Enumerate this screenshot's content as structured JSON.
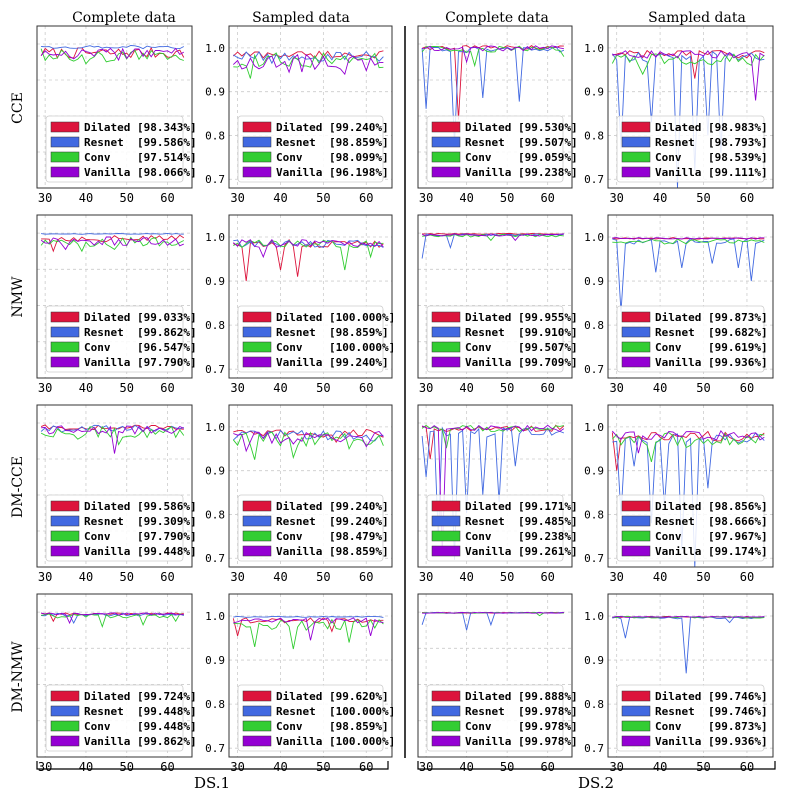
{
  "columns": [
    "Complete data",
    "Sampled data",
    "Complete data",
    "Sampled data"
  ],
  "rows": [
    "CCE",
    "NMW",
    "DM-CCE",
    "DM-NMW"
  ],
  "groups": [
    "DS.1",
    "DS.2"
  ],
  "chart_data": {
    "type": "line",
    "title": "",
    "xlabel": "",
    "ylabel": "",
    "xticks": [
      "30",
      "40",
      "50",
      "60"
    ],
    "xlim": [
      28,
      66
    ],
    "complete_ylim": [
      0.6,
      1.05
    ],
    "sampled_ylim": [
      0.68,
      1.05
    ],
    "sampled_yticks": [
      "0.7",
      "0.8",
      "0.9",
      "1.0"
    ],
    "series_names": [
      "Dilated",
      "Resnet",
      "Conv",
      "Vanilla"
    ],
    "series_colors": [
      "#dc143c",
      "#4169e1",
      "#32cd32",
      "#9400d3"
    ],
    "panels": [
      {
        "row": "CCE",
        "col": 0,
        "legend": [
          "[98.343%]",
          "[99.586%]",
          "[97.514%]",
          "[98.066%]"
        ],
        "base": [
          0.975,
          0.992,
          0.968,
          0.972
        ],
        "dips": [
          [],
          [],
          [
            [
              40,
              0.945
            ],
            [
              47,
              0.955
            ]
          ],
          [
            [
              50,
              0.96
            ]
          ]
        ]
      },
      {
        "row": "CCE",
        "col": 1,
        "legend": [
          "[99.240%]",
          "[98.859%]",
          "[98.099%]",
          "[96.198%]"
        ],
        "base": [
          0.985,
          0.98,
          0.972,
          0.965
        ],
        "dips": [
          [],
          [
            [
              38,
              0.965
            ]
          ],
          [
            [
              33,
              0.93
            ],
            [
              63,
              0.955
            ]
          ],
          [
            [
              45,
              0.945
            ],
            [
              55,
              0.94
            ]
          ]
        ]
      },
      {
        "row": "CCE",
        "col": 2,
        "legend": [
          "[99.530%]",
          "[99.507%]",
          "[99.059%]",
          "[99.238%]"
        ],
        "base": [
          0.99,
          0.985,
          0.985,
          0.988
        ],
        "dips": [
          [
            [
              38,
              0.79
            ]
          ],
          [
            [
              30,
              0.82
            ],
            [
              37,
              0.72
            ],
            [
              44,
              0.85
            ],
            [
              53,
              0.84
            ]
          ],
          [
            [
              42,
              0.94
            ],
            [
              64,
              0.965
            ]
          ],
          [
            [
              40,
              0.95
            ]
          ]
        ]
      },
      {
        "row": "CCE",
        "col": 3,
        "legend": [
          "[98.983%]",
          "[98.793%]",
          "[98.539%]",
          "[99.111%]"
        ],
        "base": [
          0.985,
          0.98,
          0.975,
          0.985
        ],
        "dips": [
          [
            [
              48,
              0.93
            ]
          ],
          [
            [
              31,
              0.77
            ],
            [
              38,
              0.83
            ],
            [
              44,
              0.68
            ],
            [
              48,
              0.72
            ],
            [
              51,
              0.8
            ],
            [
              54,
              0.76
            ]
          ],
          [
            [
              36,
              0.94
            ]
          ],
          [
            [
              62,
              0.88
            ]
          ]
        ]
      },
      {
        "row": "NMW",
        "col": 0,
        "legend": [
          "[99.033%]",
          "[99.862%]",
          "[96.547%]",
          "[97.790%]"
        ],
        "base": [
          0.985,
          0.998,
          0.975,
          0.978
        ],
        "dips": [
          [
            [
              32,
              0.95
            ]
          ],
          [],
          [
            [
              39,
              0.95
            ],
            [
              47,
              0.955
            ]
          ],
          [
            [
              35,
              0.955
            ],
            [
              63,
              0.965
            ]
          ]
        ]
      },
      {
        "row": "NMW",
        "col": 1,
        "legend": [
          "[100.000%]",
          "[98.859%]",
          "[100.000%]",
          "[99.240%]"
        ],
        "base": [
          0.985,
          0.985,
          0.985,
          0.985
        ],
        "dips": [
          [
            [
              32,
              0.9
            ],
            [
              40,
              0.925
            ],
            [
              44,
              0.91
            ]
          ],
          [],
          [
            [
              55,
              0.925
            ],
            [
              61,
              0.955
            ]
          ],
          [
            [
              36,
              0.955
            ]
          ]
        ]
      },
      {
        "row": "NMW",
        "col": 2,
        "legend": [
          "[99.955%]",
          "[99.910%]",
          "[99.507%]",
          "[99.709%]"
        ],
        "base": [
          0.998,
          0.995,
          0.993,
          0.995
        ],
        "dips": [
          [],
          [
            [
              29,
              0.93
            ],
            [
              36,
              0.96
            ]
          ],
          [
            [
              46,
              0.98
            ]
          ],
          [
            [
              52,
              0.98
            ]
          ]
        ]
      },
      {
        "row": "NMW",
        "col": 3,
        "legend": [
          "[99.873%]",
          "[99.682%]",
          "[99.619%]",
          "[99.936%]"
        ],
        "base": [
          0.997,
          0.99,
          0.99,
          0.997
        ],
        "dips": [
          [],
          [
            [
              31,
              0.83
            ],
            [
              39,
              0.92
            ],
            [
              45,
              0.93
            ],
            [
              52,
              0.94
            ],
            [
              58,
              0.93
            ],
            [
              61,
              0.9
            ]
          ],
          [
            [
              35,
              0.99
            ]
          ],
          []
        ]
      },
      {
        "row": "DM-CCE",
        "col": 0,
        "legend": [
          "[99.586%]",
          "[99.309%]",
          "[97.790%]",
          "[99.448%]"
        ],
        "base": [
          0.988,
          0.985,
          0.975,
          0.98
        ],
        "dips": [
          [],
          [
            [
              34,
              0.975
            ]
          ],
          [
            [
              38,
              0.955
            ],
            [
              48,
              0.94
            ],
            [
              55,
              0.96
            ]
          ],
          [
            [
              47,
              0.915
            ]
          ]
        ]
      },
      {
        "row": "DM-CCE",
        "col": 1,
        "legend": [
          "[99.240%]",
          "[99.240%]",
          "[98.479%]",
          "[98.859%]"
        ],
        "base": [
          0.985,
          0.98,
          0.972,
          0.975
        ],
        "dips": [
          [
            [
              53,
              0.965
            ]
          ],
          [],
          [
            [
              34,
              0.925
            ],
            [
              43,
              0.93
            ],
            [
              56,
              0.95
            ]
          ],
          [
            [
              32,
              0.945
            ],
            [
              60,
              0.955
            ]
          ]
        ]
      },
      {
        "row": "DM-CCE",
        "col": 2,
        "legend": [
          "[99.171%]",
          "[99.485%]",
          "[99.238%]",
          "[99.261%]"
        ],
        "base": [
          0.985,
          0.975,
          0.985,
          0.985
        ],
        "dips": [
          [
            [
              31,
              0.9
            ]
          ],
          [
            [
              30,
              0.85
            ],
            [
              33,
              0.68
            ],
            [
              37,
              0.62
            ],
            [
              40,
              0.75
            ],
            [
              44,
              0.8
            ],
            [
              48,
              0.78
            ],
            [
              52,
              0.88
            ]
          ],
          [
            [
              35,
              0.93
            ]
          ],
          [
            [
              34,
              0.64
            ]
          ]
        ]
      },
      {
        "row": "DM-CCE",
        "col": 3,
        "legend": [
          "[98.856%]",
          "[98.666%]",
          "[97.967%]",
          "[99.174%]"
        ],
        "base": [
          0.98,
          0.975,
          0.97,
          0.98
        ],
        "dips": [
          [
            [
              30,
              0.9
            ]
          ],
          [
            [
              31,
              0.8
            ],
            [
              34,
              0.91
            ],
            [
              38,
              0.78
            ],
            [
              41,
              0.82
            ],
            [
              45,
              0.72
            ],
            [
              48,
              0.68
            ],
            [
              51,
              0.86
            ]
          ],
          [
            [
              38,
              0.92
            ]
          ],
          [
            [
              35,
              0.94
            ]
          ]
        ]
      },
      {
        "row": "DM-NMW",
        "col": 0,
        "legend": [
          "[99.724%]",
          "[99.448%]",
          "[99.448%]",
          "[99.862%]"
        ],
        "base": [
          0.995,
          0.993,
          0.99,
          0.995
        ],
        "dips": [
          [
            [
              32,
              0.975
            ]
          ],
          [
            [
              37,
              0.97
            ]
          ],
          [
            [
              44,
              0.96
            ],
            [
              54,
              0.965
            ],
            [
              62,
              0.975
            ]
          ],
          [
            [
              36,
              0.97
            ]
          ]
        ]
      },
      {
        "row": "DM-NMW",
        "col": 1,
        "legend": [
          "[99.620%]",
          "[100.000%]",
          "[98.859%]",
          "[100.000%]"
        ],
        "base": [
          0.99,
          0.998,
          0.98,
          0.99
        ],
        "dips": [
          [
            [
              30,
              0.955
            ],
            [
              52,
              0.965
            ]
          ],
          [],
          [
            [
              34,
              0.93
            ],
            [
              43,
              0.925
            ],
            [
              56,
              0.94
            ]
          ],
          [
            [
              47,
              0.945
            ],
            [
              61,
              0.955
            ]
          ]
        ]
      },
      {
        "row": "DM-NMW",
        "col": 2,
        "legend": [
          "[99.888%]",
          "[99.978%]",
          "[99.978%]",
          "[99.978%]"
        ],
        "base": [
          0.998,
          0.998,
          0.998,
          0.998
        ],
        "dips": [
          [],
          [
            [
              29,
              0.965
            ],
            [
              40,
              0.95
            ],
            [
              46,
              0.965
            ]
          ],
          [
            [
              58,
              0.99
            ]
          ],
          []
        ]
      },
      {
        "row": "DM-NMW",
        "col": 3,
        "legend": [
          "[99.746%]",
          "[99.746%]",
          "[99.873%]",
          "[99.936%]"
        ],
        "base": [
          0.998,
          0.996,
          0.997,
          0.998
        ],
        "dips": [
          [],
          [
            [
              32,
              0.95
            ],
            [
              46,
              0.87
            ],
            [
              56,
              0.985
            ]
          ],
          [],
          []
        ]
      }
    ]
  }
}
